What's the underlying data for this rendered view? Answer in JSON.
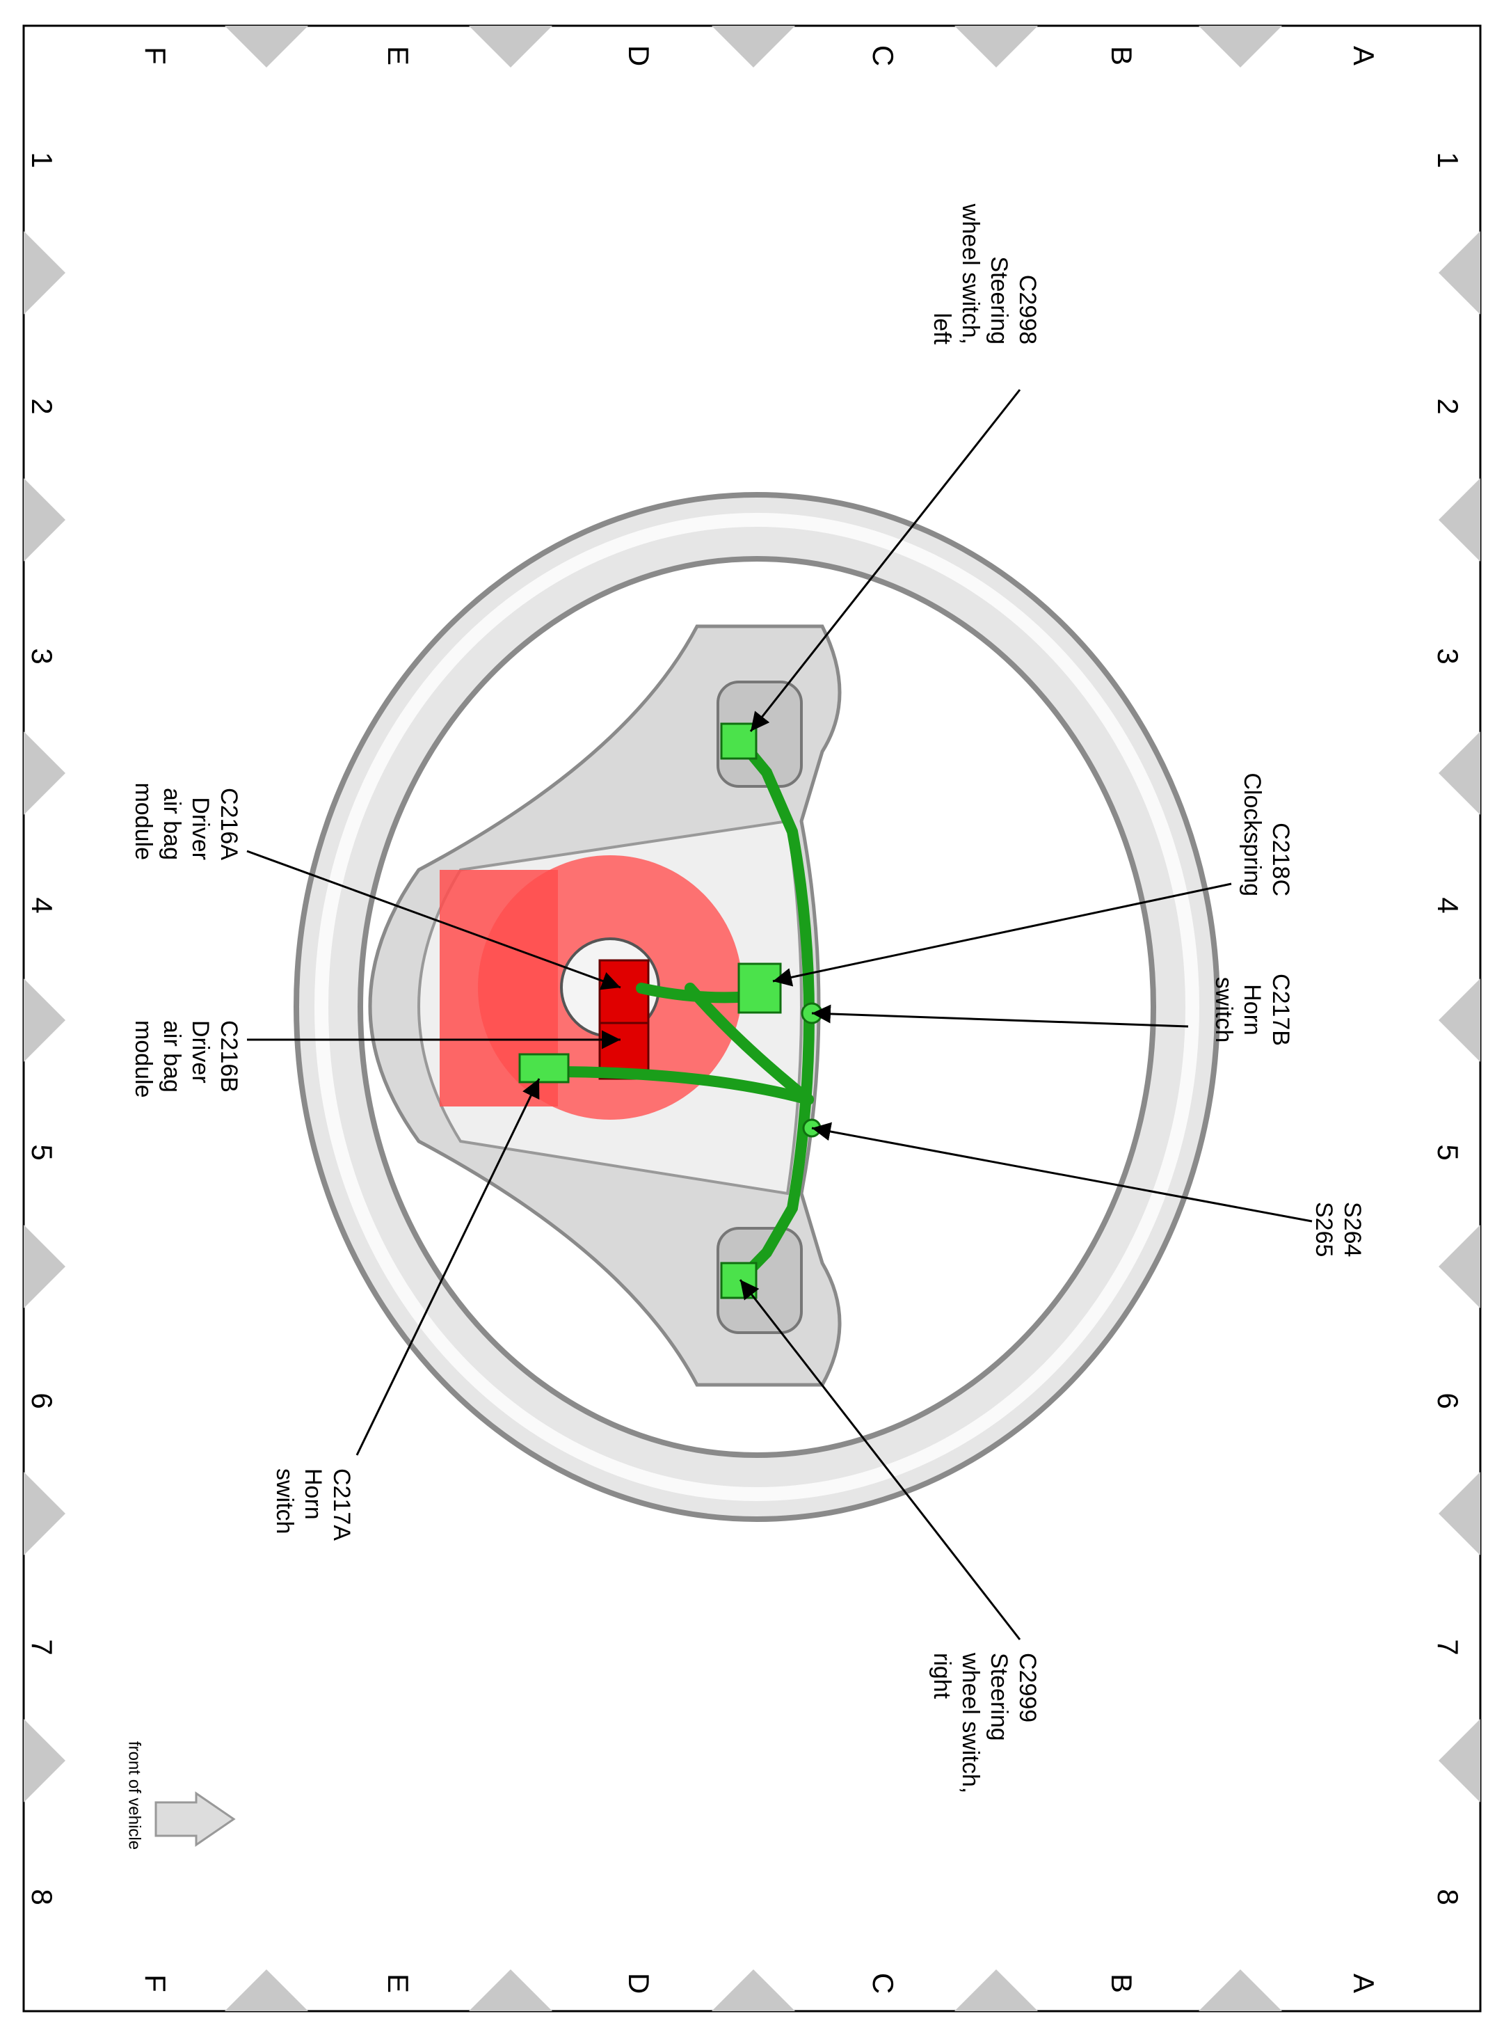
{
  "column_labels": [
    "1",
    "2",
    "3",
    "4",
    "5",
    "6",
    "7",
    "8"
  ],
  "row_labels": [
    "A",
    "B",
    "C",
    "D",
    "E",
    "F"
  ],
  "callouts": [
    {
      "lines": [
        "C2998",
        "Steering",
        "wheel switch,",
        "left"
      ]
    },
    {
      "lines": [
        "C218C",
        "Clockspring"
      ]
    },
    {
      "lines": [
        "C217B",
        "Horn",
        "switch"
      ]
    },
    {
      "lines": [
        "S264",
        "S265"
      ]
    },
    {
      "lines": [
        "C2999",
        "Steering",
        "wheel switch,",
        "right"
      ]
    },
    {
      "lines": [
        "C217A",
        "Horn",
        "switch"
      ]
    },
    {
      "lines": [
        "C216A",
        "Driver",
        "air bag",
        "module"
      ]
    },
    {
      "lines": [
        "C216B",
        "Driver",
        "air bag",
        "module"
      ]
    }
  ],
  "direction_note": "front of vehicle"
}
